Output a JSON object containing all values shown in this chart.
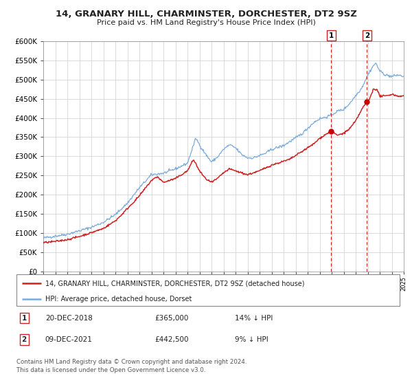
{
  "title": "14, GRANARY HILL, CHARMINSTER, DORCHESTER, DT2 9SZ",
  "subtitle": "Price paid vs. HM Land Registry's House Price Index (HPI)",
  "legend_line1": "14, GRANARY HILL, CHARMINSTER, DORCHESTER, DT2 9SZ (detached house)",
  "legend_line2": "HPI: Average price, detached house, Dorset",
  "annotation1_date": "20-DEC-2018",
  "annotation1_price": "£365,000",
  "annotation1_hpi": "14% ↓ HPI",
  "annotation2_date": "09-DEC-2021",
  "annotation2_price": "£442,500",
  "annotation2_hpi": "9% ↓ HPI",
  "footer": "Contains HM Land Registry data © Crown copyright and database right 2024.\nThis data is licensed under the Open Government Licence v3.0.",
  "hpi_color": "#7aabdb",
  "price_color": "#cc2222",
  "marker_color": "#cc0000",
  "vline_color": "#cc2222",
  "ylim": [
    0,
    600000
  ],
  "yticks": [
    0,
    50000,
    100000,
    150000,
    200000,
    250000,
    300000,
    350000,
    400000,
    450000,
    500000,
    550000,
    600000
  ],
  "sale1_year": 2018.96,
  "sale1_value": 365000,
  "sale2_year": 2021.94,
  "sale2_value": 442500
}
